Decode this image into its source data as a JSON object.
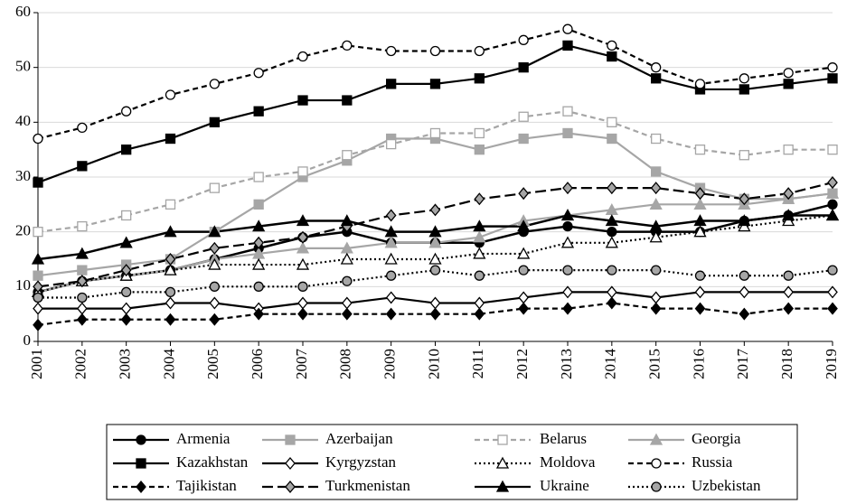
{
  "chart_data": {
    "type": "line",
    "categories": [
      "2001",
      "2002",
      "2003",
      "2004",
      "2005",
      "2006",
      "2007",
      "2008",
      "2009",
      "2010",
      "2011",
      "2012",
      "2013",
      "2014",
      "2015",
      "2016",
      "2017",
      "2018",
      "2019"
    ],
    "ylim": [
      0,
      60
    ],
    "yticks": [
      0,
      10,
      20,
      30,
      40,
      50,
      60
    ],
    "grid": true,
    "legend": "bottom",
    "series": [
      {
        "name": "Armenia",
        "color": "#000000",
        "dash": "solid",
        "marker": "circle",
        "marker_fill": "#000000",
        "values": [
          9,
          11,
          12,
          13,
          15,
          17,
          19,
          20,
          18,
          18,
          18,
          20,
          21,
          20,
          20,
          20,
          22,
          23,
          25
        ]
      },
      {
        "name": "Azerbaijan",
        "color": "#a6a6a6",
        "dash": "solid",
        "marker": "square",
        "marker_fill": "#a6a6a6",
        "values": [
          12,
          13,
          14,
          15,
          20,
          25,
          30,
          33,
          37,
          37,
          35,
          37,
          38,
          37,
          31,
          28,
          26,
          26,
          27
        ]
      },
      {
        "name": "Belarus",
        "color": "#a6a6a6",
        "dash": "dashed",
        "marker": "square",
        "marker_fill": "#ffffff",
        "values": [
          20,
          21,
          23,
          25,
          28,
          30,
          31,
          34,
          36,
          38,
          38,
          41,
          42,
          40,
          37,
          35,
          34,
          35,
          35
        ]
      },
      {
        "name": "Georgia",
        "color": "#a6a6a6",
        "dash": "solid",
        "marker": "triangle",
        "marker_fill": "#a6a6a6",
        "values": [
          9,
          11,
          12,
          13,
          15,
          16,
          17,
          17,
          18,
          18,
          19,
          22,
          23,
          24,
          25,
          25,
          25,
          26,
          27
        ]
      },
      {
        "name": "Kazakhstan",
        "color": "#000000",
        "dash": "solid",
        "marker": "square",
        "marker_fill": "#000000",
        "values": [
          29,
          32,
          35,
          37,
          40,
          42,
          44,
          44,
          47,
          47,
          48,
          50,
          54,
          52,
          48,
          46,
          46,
          47,
          48
        ]
      },
      {
        "name": "Kyrgyzstan",
        "color": "#000000",
        "dash": "solid",
        "marker": "diamond",
        "marker_fill": "#ffffff",
        "values": [
          6,
          6,
          6,
          7,
          7,
          6,
          7,
          7,
          8,
          7,
          7,
          8,
          9,
          9,
          8,
          9,
          9,
          9,
          9
        ]
      },
      {
        "name": "Moldova",
        "color": "#000000",
        "dash": "dotted",
        "marker": "triangle",
        "marker_fill": "#ffffff",
        "values": [
          9,
          11,
          12,
          13,
          14,
          14,
          14,
          15,
          15,
          15,
          16,
          16,
          18,
          18,
          19,
          20,
          21,
          22,
          23
        ]
      },
      {
        "name": "Russia",
        "color": "#000000",
        "dash": "dashed",
        "marker": "circle",
        "marker_fill": "#ffffff",
        "values": [
          37,
          39,
          42,
          45,
          47,
          49,
          52,
          54,
          53,
          53,
          53,
          55,
          57,
          54,
          50,
          47,
          48,
          49,
          50
        ]
      },
      {
        "name": "Tajikistan",
        "color": "#000000",
        "dash": "dashed",
        "marker": "diamond",
        "marker_fill": "#000000",
        "values": [
          3,
          4,
          4,
          4,
          4,
          5,
          5,
          5,
          5,
          5,
          5,
          6,
          6,
          7,
          6,
          6,
          5,
          6,
          6
        ]
      },
      {
        "name": "Turkmenistan",
        "color": "#000000",
        "dash": "longdash",
        "marker": "diamond",
        "marker_fill": "#a6a6a6",
        "values": [
          10,
          11,
          13,
          15,
          17,
          18,
          19,
          21,
          23,
          24,
          26,
          27,
          28,
          28,
          28,
          27,
          26,
          27,
          29
        ]
      },
      {
        "name": "Ukraine",
        "color": "#000000",
        "dash": "solid",
        "marker": "triangle",
        "marker_fill": "#000000",
        "values": [
          15,
          16,
          18,
          20,
          20,
          21,
          22,
          22,
          20,
          20,
          21,
          21,
          23,
          22,
          21,
          22,
          22,
          23,
          23
        ]
      },
      {
        "name": "Uzbekistan",
        "color": "#000000",
        "dash": "dotted",
        "marker": "circle",
        "marker_fill": "#a6a6a6",
        "values": [
          8,
          8,
          9,
          9,
          10,
          10,
          10,
          11,
          12,
          13,
          12,
          13,
          13,
          13,
          13,
          12,
          12,
          12,
          13
        ]
      }
    ]
  }
}
